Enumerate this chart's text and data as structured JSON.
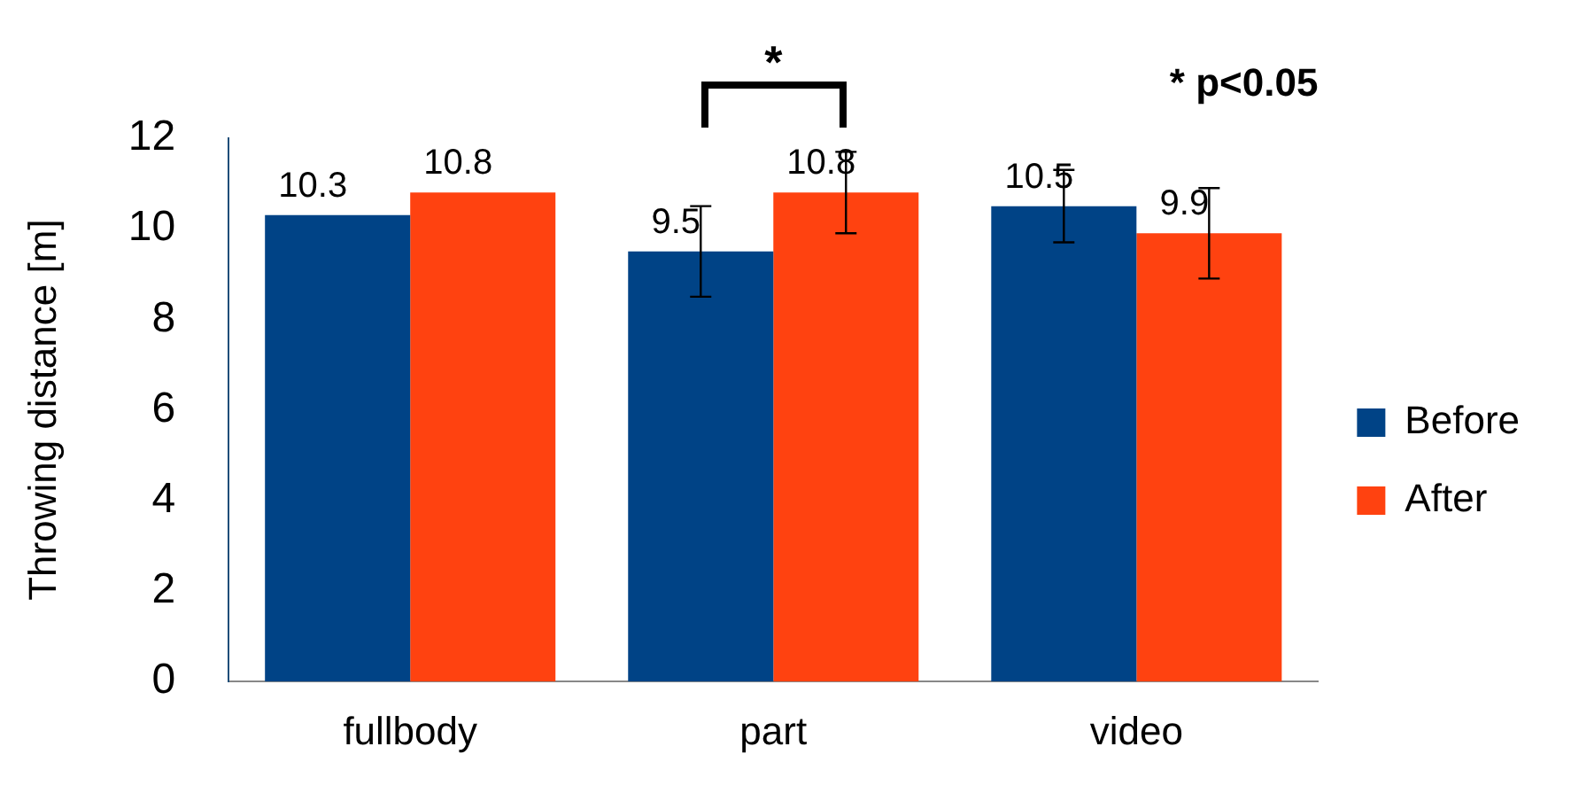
{
  "chart_data": {
    "type": "bar",
    "ylabel": "Throwing distance [m]",
    "categories": [
      "fullbody",
      "part",
      "video"
    ],
    "series": [
      {
        "name": "Before",
        "color": "#004386",
        "values": [
          10.3,
          9.5,
          10.5
        ],
        "errors": [
          null,
          1.0,
          0.8
        ]
      },
      {
        "name": "After",
        "color": "#ff4210",
        "values": [
          10.8,
          10.8,
          9.9
        ],
        "errors": [
          null,
          0.9,
          1.0
        ]
      }
    ],
    "ylim": [
      0,
      12
    ],
    "yticks": [
      0,
      2,
      4,
      6,
      8,
      10,
      12
    ],
    "grid": false,
    "legend": "right",
    "data_labels": true,
    "annotations": [
      "*",
      "* p<0.05"
    ]
  }
}
